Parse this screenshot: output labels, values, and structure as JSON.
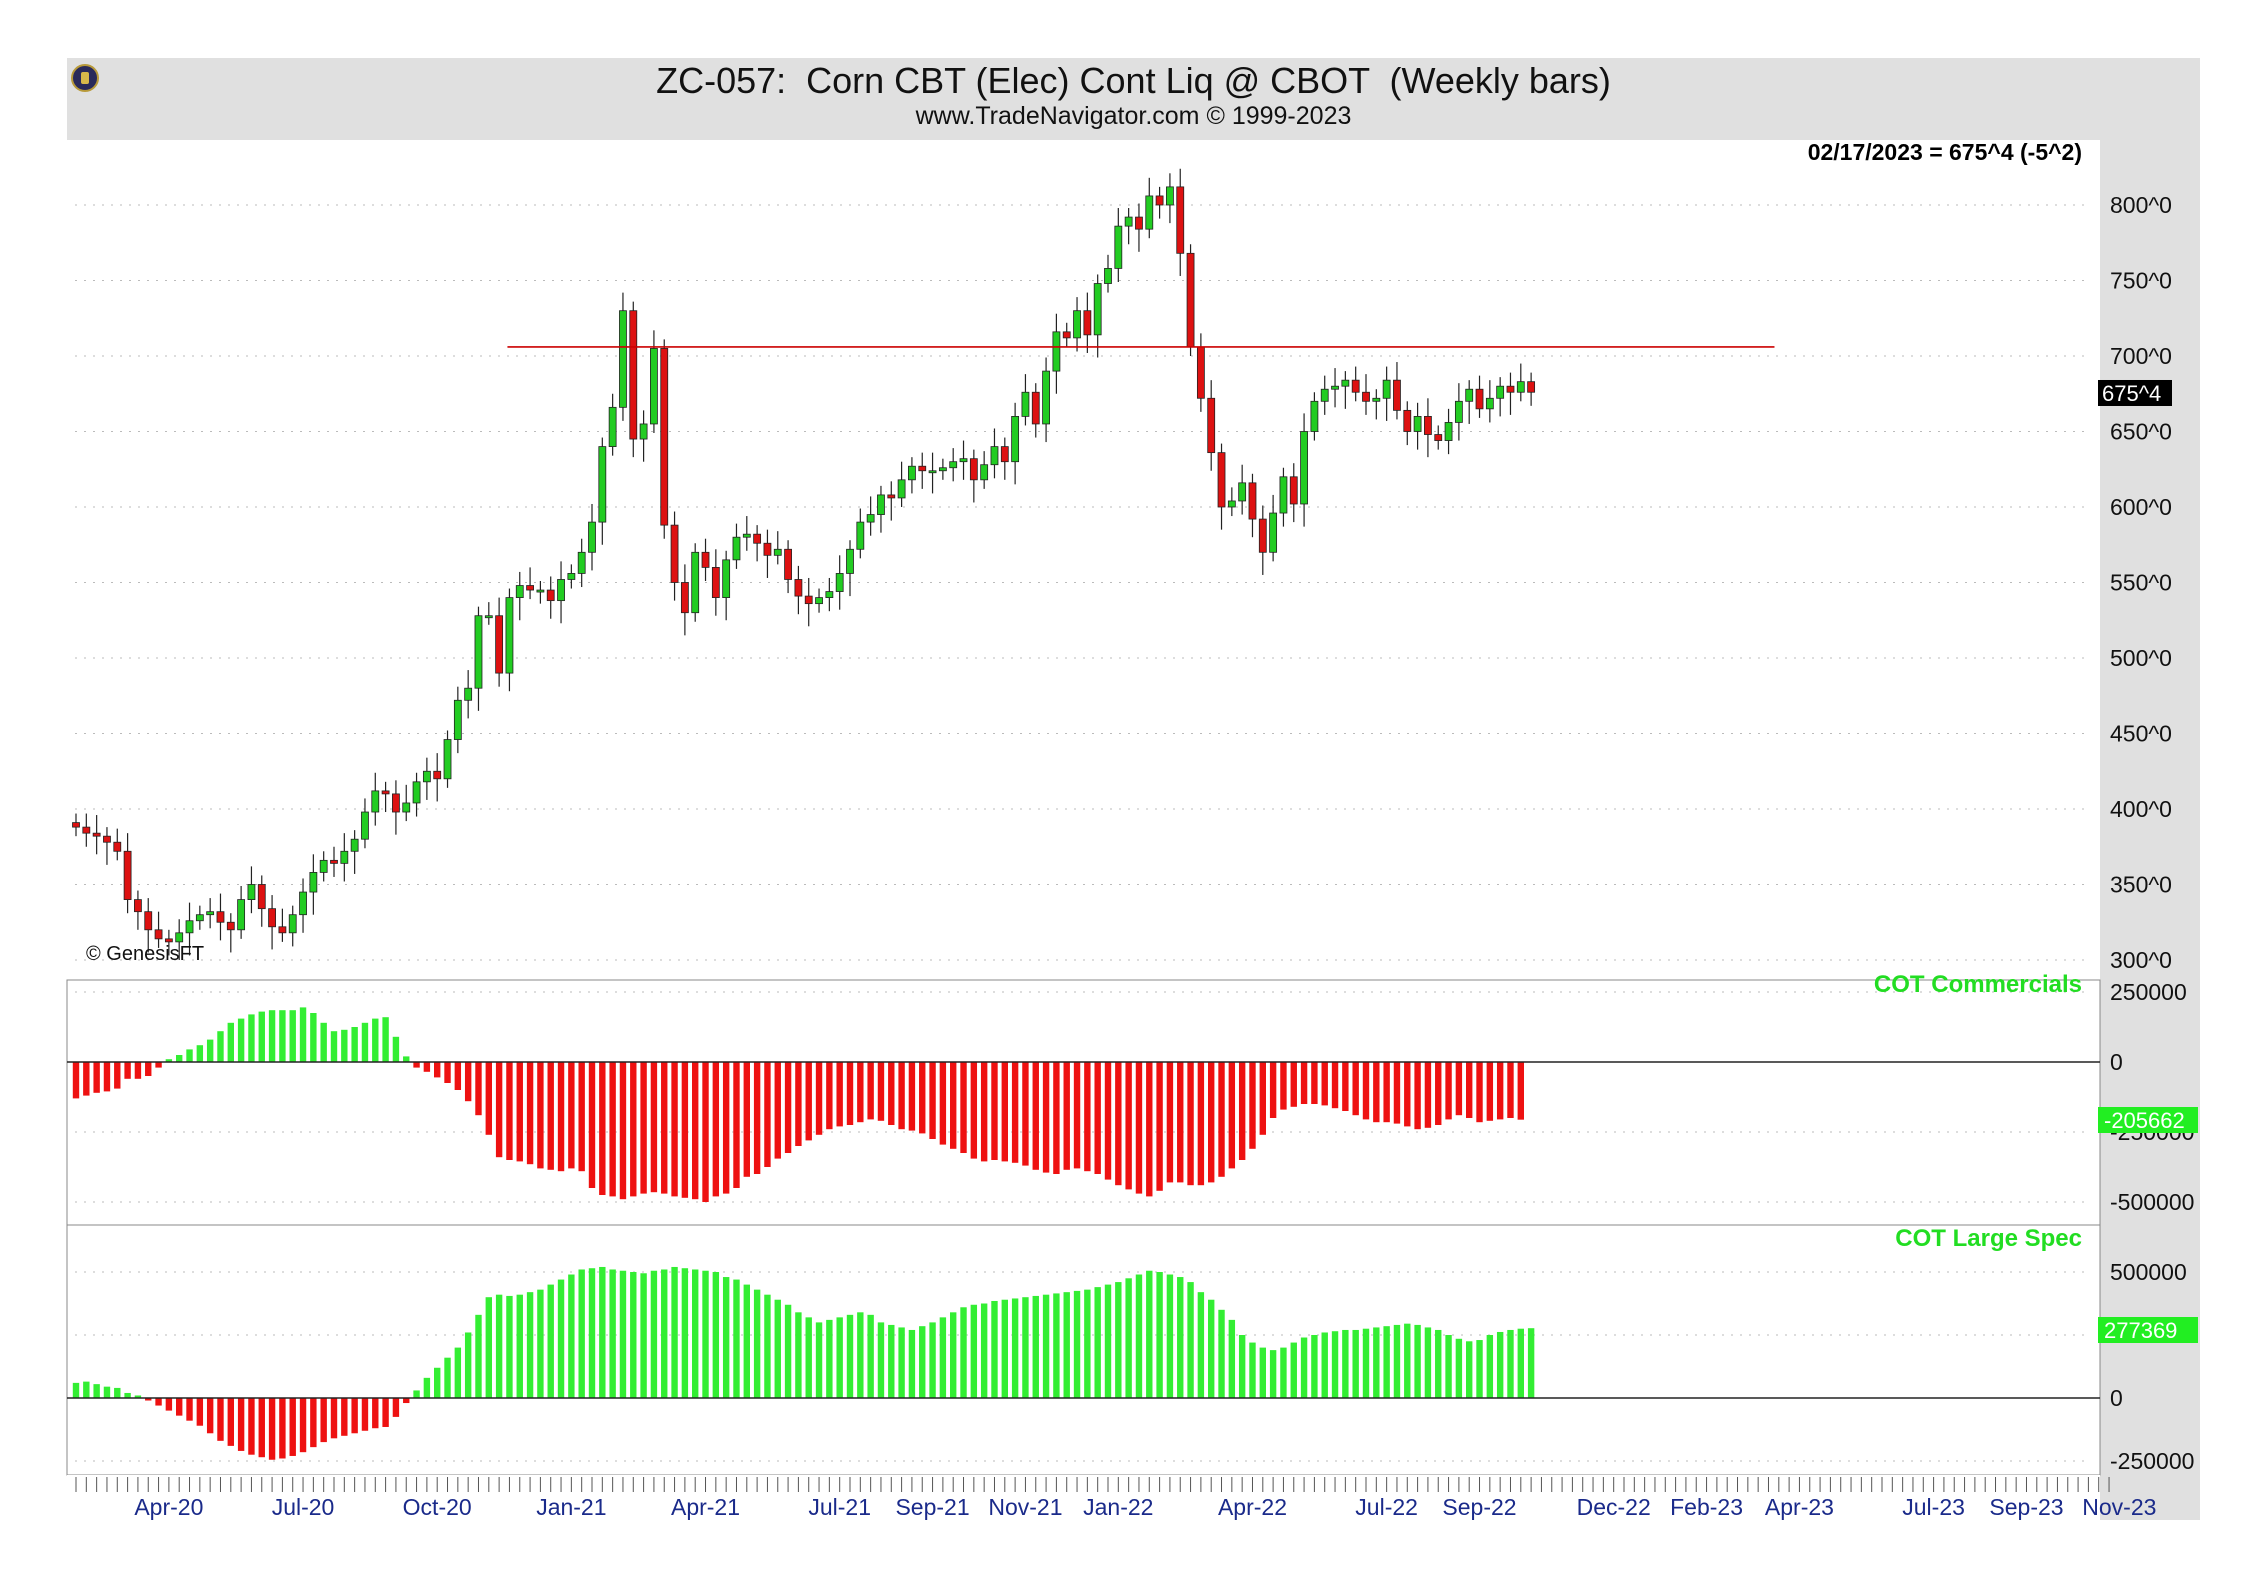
{
  "header": {
    "title": "ZC-057:  Corn CBT (Elec) Cont Liq @ CBOT  (Weekly bars)",
    "subtitle": "www.TradeNavigator.com © 1999-2023"
  },
  "chart_data": [
    {
      "type": "candlestick",
      "readout": "02/17/2023 = 675^4 (-5^2)",
      "last_price_label": "675^4",
      "credit": "© GenesisFT",
      "y_ticks": [
        "800^0",
        "750^0",
        "700^0",
        "650^0",
        "600^0",
        "550^0",
        "500^0",
        "450^0",
        "400^0",
        "350^0",
        "300^0"
      ],
      "ylim": [
        300,
        830
      ],
      "resistance_line": {
        "value": 706,
        "from_week": 42,
        "to_week": 164,
        "color": "#cc0000"
      },
      "up_color": "#22cc22",
      "down_color": "#dd1111",
      "closes": [
        388,
        384,
        382,
        378,
        372,
        340,
        332,
        320,
        314,
        312,
        318,
        326,
        330,
        332,
        325,
        320,
        340,
        350,
        334,
        322,
        318,
        330,
        345,
        358,
        366,
        364,
        372,
        380,
        398,
        412,
        410,
        398,
        404,
        418,
        425,
        420,
        446,
        472,
        480,
        528,
        528,
        490,
        540,
        548,
        545,
        545,
        538,
        552,
        556,
        570,
        590,
        640,
        666,
        730,
        645,
        655,
        705,
        588,
        550,
        530,
        570,
        560,
        540,
        565,
        580,
        582,
        576,
        568,
        572,
        552,
        541,
        536,
        540,
        544,
        556,
        572,
        590,
        595,
        608,
        606,
        618,
        627,
        624,
        624,
        626,
        630,
        632,
        618,
        628,
        640,
        630,
        660,
        676,
        655,
        690,
        716,
        712,
        730,
        714,
        748,
        758,
        786,
        792,
        784,
        806,
        800,
        812,
        768,
        706,
        672,
        636,
        600,
        604,
        616,
        592,
        570,
        596,
        620,
        602,
        650,
        670,
        678,
        680,
        684,
        676,
        670,
        672,
        684,
        664,
        650,
        660,
        648,
        644,
        656,
        670,
        678,
        665,
        672,
        680,
        676,
        683,
        676
      ]
    },
    {
      "type": "bar",
      "title": "COT Commercials",
      "last_value": "-205662",
      "y_ticks": [
        "250000",
        "0",
        "-250000",
        "-500000"
      ],
      "ylim": [
        -520000,
        260000
      ],
      "values": [
        -130000,
        -120000,
        -110000,
        -105000,
        -95000,
        -60000,
        -60000,
        -50000,
        -20000,
        10000,
        25000,
        45000,
        60000,
        80000,
        110000,
        140000,
        155000,
        170000,
        180000,
        185000,
        185000,
        185000,
        195000,
        175000,
        140000,
        110000,
        115000,
        125000,
        140000,
        155000,
        160000,
        90000,
        20000,
        -20000,
        -35000,
        -55000,
        -75000,
        -100000,
        -140000,
        -190000,
        -260000,
        -340000,
        -350000,
        -355000,
        -365000,
        -380000,
        -385000,
        -390000,
        -380000,
        -390000,
        -450000,
        -475000,
        -480000,
        -490000,
        -480000,
        -470000,
        -465000,
        -470000,
        -480000,
        -485000,
        -490000,
        -500000,
        -480000,
        -470000,
        -450000,
        -410000,
        -400000,
        -375000,
        -345000,
        -325000,
        -300000,
        -280000,
        -260000,
        -240000,
        -230000,
        -225000,
        -215000,
        -205000,
        -210000,
        -225000,
        -240000,
        -245000,
        -255000,
        -275000,
        -295000,
        -310000,
        -325000,
        -345000,
        -355000,
        -350000,
        -355000,
        -360000,
        -370000,
        -385000,
        -395000,
        -400000,
        -385000,
        -380000,
        -390000,
        -400000,
        -420000,
        -440000,
        -455000,
        -470000,
        -480000,
        -460000,
        -430000,
        -430000,
        -440000,
        -440000,
        -430000,
        -410000,
        -380000,
        -350000,
        -310000,
        -260000,
        -200000,
        -170000,
        -160000,
        -150000,
        -150000,
        -155000,
        -165000,
        -175000,
        -190000,
        -205000,
        -215000,
        -215000,
        -220000,
        -230000,
        -240000,
        -235000,
        -225000,
        -205000,
        -190000,
        -200000,
        -215000,
        -210000,
        -205000,
        -200000,
        -206000
      ]
    },
    {
      "type": "bar",
      "title": "COT Large Spec",
      "last_value": "277369",
      "y_ticks": [
        "500000",
        "250000",
        "0",
        "-250000"
      ],
      "ylim": [
        -270000,
        560000
      ],
      "values": [
        60000,
        65000,
        55000,
        45000,
        40000,
        20000,
        10000,
        -10000,
        -30000,
        -50000,
        -70000,
        -90000,
        -110000,
        -140000,
        -170000,
        -190000,
        -210000,
        -225000,
        -235000,
        -245000,
        -240000,
        -230000,
        -215000,
        -195000,
        -175000,
        -160000,
        -150000,
        -140000,
        -130000,
        -120000,
        -115000,
        -75000,
        -20000,
        30000,
        80000,
        120000,
        160000,
        200000,
        260000,
        330000,
        400000,
        410000,
        405000,
        410000,
        420000,
        430000,
        450000,
        470000,
        490000,
        510000,
        515000,
        520000,
        510000,
        505000,
        500000,
        495000,
        505000,
        510000,
        520000,
        515000,
        510000,
        505000,
        500000,
        480000,
        470000,
        450000,
        430000,
        410000,
        390000,
        370000,
        340000,
        320000,
        300000,
        310000,
        320000,
        330000,
        340000,
        330000,
        300000,
        290000,
        280000,
        270000,
        285000,
        300000,
        320000,
        340000,
        360000,
        370000,
        375000,
        385000,
        390000,
        395000,
        400000,
        405000,
        410000,
        415000,
        420000,
        425000,
        430000,
        440000,
        450000,
        460000,
        475000,
        490000,
        505000,
        500000,
        490000,
        480000,
        460000,
        420000,
        390000,
        350000,
        310000,
        250000,
        220000,
        200000,
        190000,
        200000,
        220000,
        240000,
        250000,
        260000,
        265000,
        270000,
        270000,
        275000,
        280000,
        285000,
        290000,
        295000,
        290000,
        280000,
        270000,
        250000,
        235000,
        225000,
        230000,
        250000,
        262000,
        270000,
        275000,
        277000
      ]
    }
  ],
  "x_axis": {
    "labels": [
      "Apr-20",
      "Jul-20",
      "Oct-20",
      "Jan-21",
      "Apr-21",
      "Jul-21",
      "Sep-21",
      "Nov-21",
      "Jan-22",
      "Apr-22",
      "Jul-22",
      "Sep-22",
      "Dec-22",
      "Feb-23",
      "Apr-23",
      "Jul-23",
      "Sep-23",
      "Nov-23"
    ],
    "label_weeks": [
      9,
      22,
      35,
      48,
      61,
      74,
      83,
      92,
      101,
      114,
      127,
      136,
      149,
      158,
      167,
      180,
      189,
      198
    ]
  }
}
